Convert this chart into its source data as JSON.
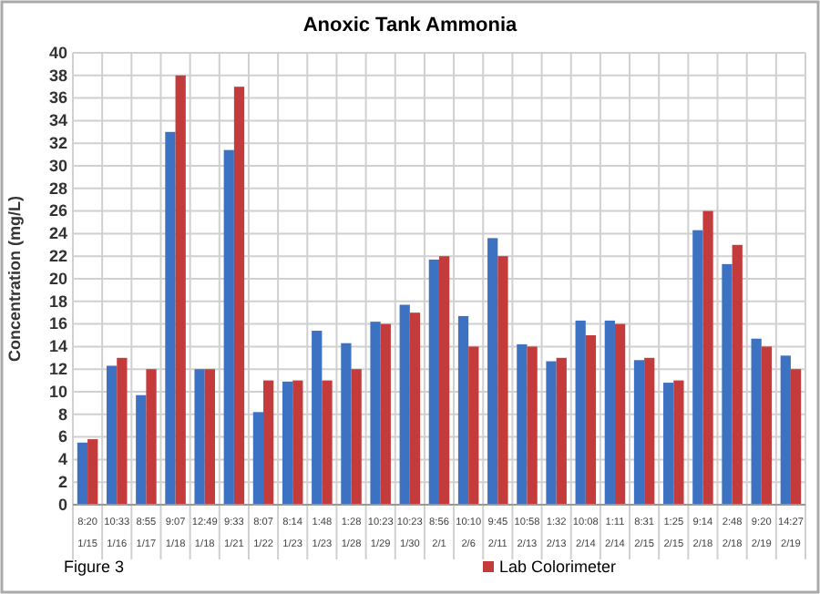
{
  "chart_data": {
    "type": "bar",
    "title": "Anoxic Tank Ammonia",
    "ylabel": "Concentration (mg/L)",
    "categories": [
      "8:20\n1/15",
      "10:33\n1/16",
      "8:55\n1/17",
      "9:07\n1/18",
      "12:49\n1/18",
      "9:33\n1/21",
      "8:07\n1/22",
      "8:14\n1/23",
      "1:48\n1/23",
      "1:28\n1/28",
      "10:23\n1/29",
      "10:23\n1/30",
      "8:56\n2/1",
      "10:10\n2/6",
      "9:45\n2/11",
      "10:58\n2/13",
      "1:32\n2/13",
      "10:08\n2/14",
      "1:11\n2/14",
      "8:31\n2/15",
      "1:25\n2/15",
      "9:14\n2/18",
      "2:48\n2/18",
      "9:20\n2/19",
      "14:27\n2/19"
    ],
    "series": [
      {
        "color": "#3d72c2",
        "values": [
          5.5,
          12.3,
          9.7,
          33,
          12,
          31.4,
          8.2,
          10.9,
          15.4,
          14.3,
          16.2,
          17.7,
          21.7,
          16.7,
          23.6,
          14.2,
          12.7,
          16.3,
          16.3,
          12.8,
          10.8,
          24.3,
          21.3,
          14.7,
          13.2
        ]
      },
      {
        "name": "Lab Colorimeter",
        "color": "#c43b3b",
        "values": [
          5.8,
          13,
          12,
          38,
          12,
          37,
          11,
          11,
          11,
          12,
          16,
          17,
          22,
          14,
          22,
          14,
          13,
          15,
          16,
          13,
          11,
          26,
          23,
          14,
          12
        ]
      }
    ],
    "ylim": [
      0,
      40
    ],
    "yticks": [
      0,
      2,
      4,
      6,
      8,
      10,
      12,
      14,
      16,
      18,
      20,
      22,
      24,
      26,
      28,
      30,
      32,
      34,
      36,
      38,
      40
    ],
    "grid": true,
    "legend": "bottom",
    "annotations": [
      "Figure 3"
    ]
  }
}
